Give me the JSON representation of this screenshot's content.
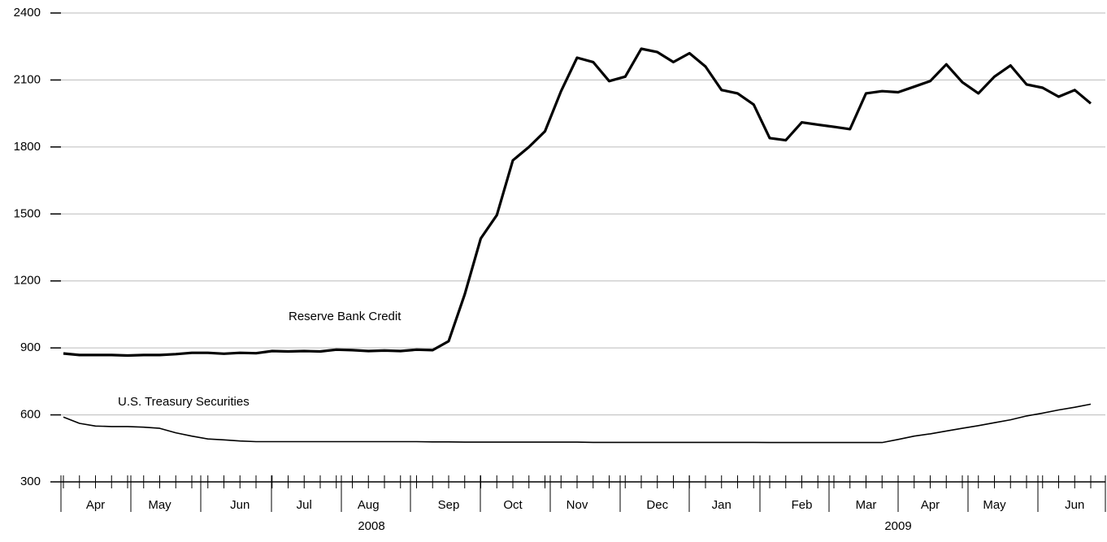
{
  "chart_data": {
    "type": "line",
    "categories": [
      null,
      null,
      "Apr",
      null,
      null,
      null,
      "May",
      null,
      null,
      null,
      null,
      "Jun",
      null,
      null,
      null,
      "Jul",
      null,
      null,
      null,
      "Aug",
      null,
      null,
      null,
      null,
      "Sep",
      null,
      null,
      null,
      "Oct",
      null,
      null,
      null,
      "Nov",
      null,
      null,
      null,
      null,
      "Dec",
      null,
      null,
      null,
      "Jan",
      null,
      null,
      null,
      null,
      "Feb",
      null,
      null,
      null,
      "Mar",
      null,
      null,
      null,
      "Apr",
      null,
      null,
      null,
      "May",
      null,
      null,
      null,
      null,
      "Jun",
      null
    ],
    "year_labels": [
      "2008",
      "2009"
    ],
    "series": [
      {
        "name": "Reserve Bank Credit",
        "color": "#000000",
        "values": [
          875,
          868,
          868,
          868,
          866,
          868,
          868,
          872,
          878,
          878,
          874,
          878,
          876,
          886,
          884,
          886,
          884,
          892,
          890,
          886,
          888,
          886,
          892,
          890,
          930,
          1140,
          1390,
          1495,
          1740,
          1800,
          1870,
          2050,
          2200,
          2180,
          2095,
          2115,
          2240,
          2225,
          2180,
          2220,
          2160,
          2055,
          2040,
          1990,
          1840,
          1830,
          1910,
          1900,
          1890,
          1880,
          2040,
          2050,
          2045,
          2070,
          2095,
          2170,
          2090,
          2040,
          2115,
          2165,
          2080,
          2065,
          2025,
          2055,
          1995
        ]
      },
      {
        "name": "U.S. Treasury Securities",
        "color": "#000000",
        "values": [
          590,
          562,
          550,
          548,
          548,
          545,
          540,
          520,
          505,
          492,
          488,
          483,
          480,
          480,
          480,
          480,
          480,
          480,
          480,
          480,
          480,
          480,
          480,
          479,
          479,
          478,
          478,
          478,
          478,
          478,
          478,
          478,
          478,
          477,
          477,
          477,
          477,
          477,
          477,
          477,
          477,
          477,
          477,
          477,
          476,
          476,
          476,
          476,
          476,
          476,
          476,
          476,
          490,
          505,
          515,
          528,
          540,
          552,
          565,
          578,
          595,
          608,
          622,
          634,
          648
        ]
      }
    ],
    "ylim": [
      300,
      2400
    ],
    "yticks": [
      300,
      600,
      900,
      1200,
      1500,
      1800,
      2100,
      2400
    ],
    "grid": true
  }
}
